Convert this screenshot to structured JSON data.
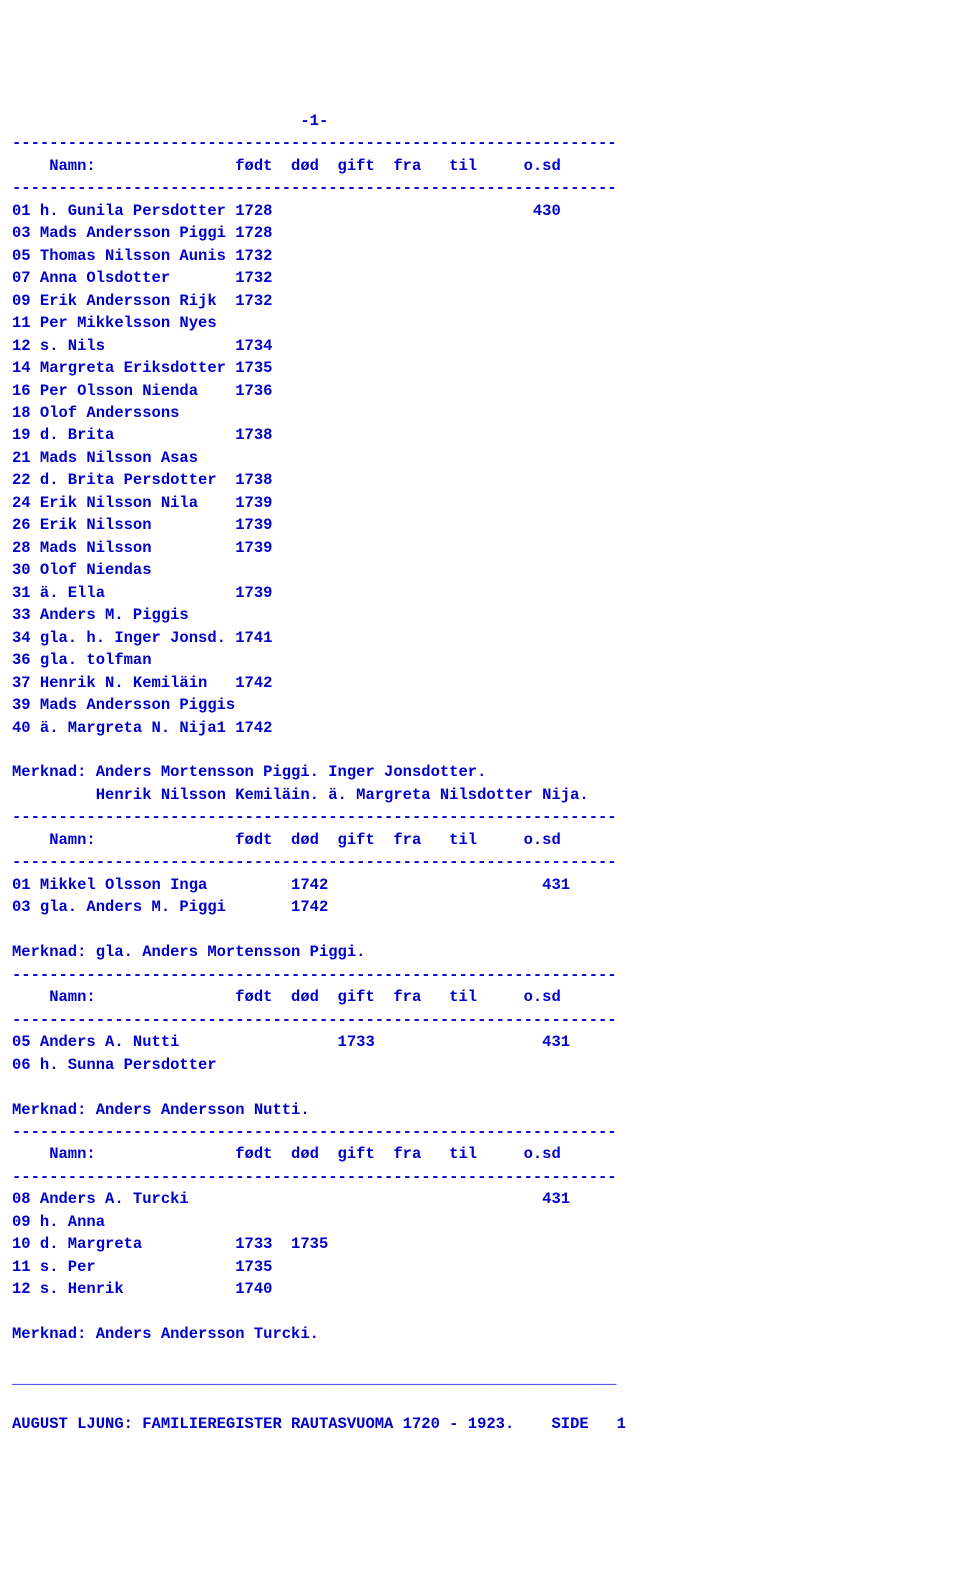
{
  "page": {
    "number_label": "-1-",
    "divider": "-----------------------------------------------------------------",
    "header_line": "    Namn:               født  død  gift  fra   til     o.sd",
    "footer_divider": "_________________________________________________________________",
    "footer": "AUGUST LJUNG: FAMILIEREGISTER RAUTASVUOMA 1720 - 1923.    SIDE   1",
    "colors": {
      "text": "#0000cd",
      "background": "#ffffff"
    },
    "font": {
      "family": "Courier New",
      "size": 15.5,
      "weight": "bold"
    }
  },
  "block1": {
    "rows": [
      "01 h. Gunila Persdotter 1728                            430",
      "03 Mads Andersson Piggi 1728",
      "05 Thomas Nilsson Aunis 1732",
      "07 Anna Olsdotter       1732",
      "09 Erik Andersson Rijk  1732",
      "11 Per Mikkelsson Nyes",
      "12 s. Nils              1734",
      "14 Margreta Eriksdotter 1735",
      "16 Per Olsson Nienda    1736",
      "18 Olof Anderssons",
      "19 d. Brita             1738",
      "21 Mads Nilsson Asas",
      "22 d. Brita Persdotter  1738",
      "24 Erik Nilsson Nila    1739",
      "26 Erik Nilsson         1739",
      "28 Mads Nilsson         1739",
      "30 Olof Niendas",
      "31 ä. Ella              1739",
      "33 Anders M. Piggis",
      "34 gla. h. Inger Jonsd. 1741",
      "36 gla. tolfman",
      "37 Henrik N. Kemiläin   1742",
      "39 Mads Andersson Piggis",
      "40 ä. Margreta N. Nija1 1742"
    ],
    "merknad": [
      "Merknad: Anders Mortensson Piggi. Inger Jonsdotter.",
      "         Henrik Nilsson Kemiläin. ä. Margreta Nilsdotter Nija."
    ]
  },
  "block2": {
    "rows": [
      "01 Mikkel Olsson Inga         1742                       431",
      "03 gla. Anders M. Piggi       1742"
    ],
    "merknad": [
      "Merknad: gla. Anders Mortensson Piggi."
    ]
  },
  "block3": {
    "rows": [
      "05 Anders A. Nutti                 1733                  431",
      "06 h. Sunna Persdotter"
    ],
    "merknad": [
      "Merknad: Anders Andersson Nutti."
    ]
  },
  "block4": {
    "rows": [
      "08 Anders A. Turcki                                      431",
      "09 h. Anna",
      "10 d. Margreta          1733  1735",
      "11 s. Per               1735",
      "12 s. Henrik            1740"
    ],
    "merknad": [
      "Merknad: Anders Andersson Turcki."
    ]
  }
}
